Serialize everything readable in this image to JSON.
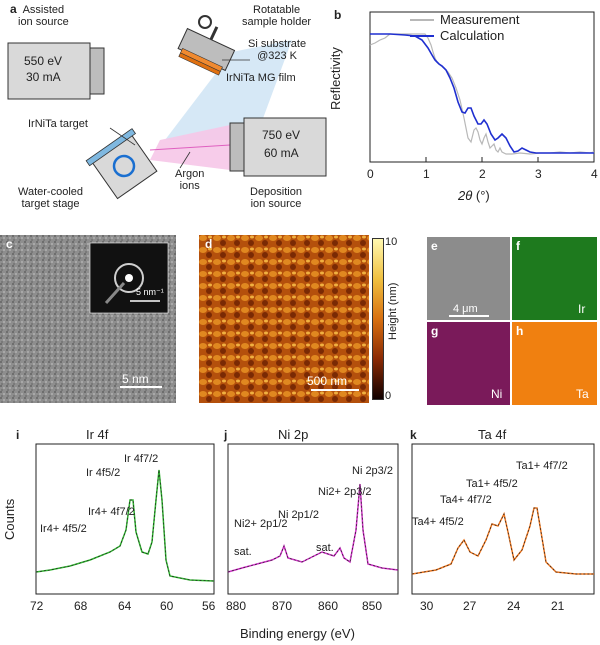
{
  "panel_a": {
    "letter": "a",
    "assisted_source_label": "Assisted\nion source",
    "assisted_energy": "550 eV",
    "assisted_current": "30 mA",
    "holder_label": "Rotatable\nsample holder",
    "substrate_label": "Si substrate\n@323 K",
    "film_label": "IrNiTa MG film",
    "target_label": "IrNiTa target",
    "stage_label": "Water-cooled\ntarget stage",
    "argon_label": "Argon\nions",
    "deposition_energy": "750 eV",
    "deposition_current": "60 mA",
    "deposition_label": "Deposition\nion source"
  },
  "panel_b": {
    "letter": "b",
    "legend_measurement": "Measurement",
    "legend_calculation": "Calculation",
    "ylabel": "Reflectivity",
    "xlabel_symbol": "2θ",
    "xlabel_unit": " (°)",
    "xticks": [
      "0",
      "1",
      "2",
      "3",
      "4"
    ]
  },
  "panel_c": {
    "letter": "c",
    "scale_main": "5 nm",
    "scale_inset": "5 nm⁻¹"
  },
  "panel_d": {
    "letter": "d",
    "scale": "500 nm",
    "colorbar_label": "Height (nm)",
    "colorbar_max": "10",
    "colorbar_min": "0"
  },
  "panel_efgh": {
    "e": "e",
    "f": "f",
    "g": "g",
    "h": "h",
    "scale": "4 μm",
    "f_element": "Ir",
    "g_element": "Ni",
    "h_element": "Ta",
    "colors": {
      "e": "#8a8a8a",
      "f": "#1e7a1e",
      "g": "#7a1a5a",
      "h": "#f08010"
    }
  },
  "xps": {
    "ylabel": "Counts",
    "xlabel": "Binding energy (eV)",
    "i": {
      "letter": "i",
      "title": "Ir 4f",
      "xticks": [
        "72",
        "68",
        "64",
        "60",
        "56"
      ],
      "peaks": [
        "Ir 4f5/2",
        "Ir 4f7/2",
        "Ir4+ 4f7/2",
        "Ir4+ 4f5/2"
      ],
      "color": "#2fb52f"
    },
    "j": {
      "letter": "j",
      "title": "Ni 2p",
      "xticks": [
        "880",
        "870",
        "860",
        "850"
      ],
      "peaks": [
        "Ni2+ 2p1/2",
        "Ni 2p1/2",
        "sat.",
        "sat.",
        "Ni2+ 2p3/2",
        "Ni 2p3/2"
      ],
      "color": "#d030c8"
    },
    "k": {
      "letter": "k",
      "title": "Ta 4f",
      "xticks": [
        "30",
        "27",
        "24",
        "21"
      ],
      "peaks": [
        "Ta4+ 4f5/2",
        "Ta4+ 4f7/2",
        "Ta1+ 4f5/2",
        "Ta1+ 4f7/2"
      ],
      "color": "#f07820"
    }
  }
}
